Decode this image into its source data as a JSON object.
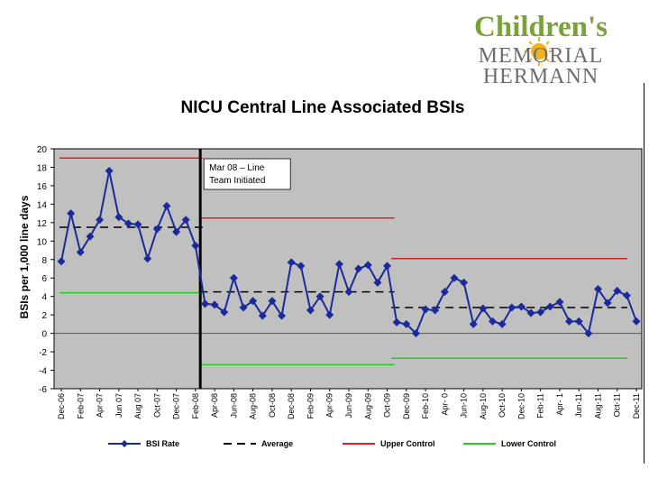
{
  "logo": {
    "line1": "Children's",
    "line2": "MEMORIAL",
    "line3": "HERMANN",
    "colors": {
      "green": "#7aa23a",
      "gray": "#6d6d6d",
      "sun": "#f2b21b"
    }
  },
  "chart_data": {
    "type": "line",
    "title": "NICU Central Line Associated BSIs",
    "ylabel": "BSIs per 1,000 line days",
    "xlabel": "",
    "ylim": [
      -6,
      20
    ],
    "yticks": [
      -6,
      -4,
      -2,
      0,
      2,
      4,
      6,
      8,
      10,
      12,
      14,
      16,
      18,
      20
    ],
    "xtick_labels": [
      "Dec-06",
      "Feb-07",
      "Apr-07",
      "Jun 07",
      "Aug 07",
      "Oct-07",
      "Dec-07",
      "Feb-08",
      "Apr-08",
      "Jun-08",
      "Aug-08",
      "Oct-08",
      "Dec-08",
      "Feb-09",
      "Apr-09",
      "Jun-09",
      "Aug-09",
      "Oct-09",
      "Dec-09",
      "Feb-10",
      "Apr- 0",
      "Jun-10",
      "Aug-10",
      "Oct-10",
      "Dec-10",
      "Feb-11",
      "Apr- 1",
      "Jun-11",
      "Aug-11",
      "Oct-11",
      "Dec-11"
    ],
    "series": [
      {
        "name": "BSI Rate",
        "color": "#1a2a9c",
        "values": [
          7.8,
          13,
          8.8,
          10.5,
          12.3,
          17.6,
          12.6,
          11.9,
          11.8,
          8.1,
          11.3,
          13.8,
          11,
          12.3,
          9.5,
          3.2,
          3.1,
          2.3,
          6,
          2.8,
          3.5,
          1.9,
          3.5,
          1.9,
          7.7,
          7.3,
          2.5,
          4,
          2,
          7.5,
          4.5,
          7,
          7.4,
          5.5,
          7.3,
          1.2,
          1,
          0,
          2.6,
          2.5,
          4.5,
          6,
          5.5,
          1,
          2.7,
          1.3,
          1,
          2.8,
          2.9,
          2.2,
          2.3,
          2.9,
          3.4,
          1.3,
          1.3,
          0,
          4.8,
          3.3,
          4.6,
          4.1,
          1.3
        ]
      }
    ],
    "reference_lines": [
      {
        "name": "Average",
        "color": "#000000",
        "dash": true,
        "segments": [
          {
            "from": 0,
            "to": 14,
            "value": 11.5
          },
          {
            "from": 15,
            "to": 34,
            "value": 4.5
          },
          {
            "from": 35,
            "to": 60,
            "value": 2.8
          }
        ]
      },
      {
        "name": "Upper Control",
        "color": "#e02020",
        "dash": false,
        "segments": [
          {
            "from": 0,
            "to": 14,
            "value": 19
          },
          {
            "from": 15,
            "to": 34,
            "value": 12.5
          },
          {
            "from": 35,
            "to": 60,
            "value": 8.1
          }
        ]
      },
      {
        "name": "Lower Control",
        "color": "#22cc22",
        "dash": false,
        "segments": [
          {
            "from": 0,
            "to": 14,
            "value": 4.4
          },
          {
            "from": 15,
            "to": 34,
            "value": -3.4
          },
          {
            "from": 35,
            "to": 60,
            "value": -2.7
          }
        ]
      }
    ],
    "intervention_index": 14.5,
    "annotation": {
      "line1": "Mar 08 – Line",
      "line2": "Team Initiated"
    },
    "legend": [
      "BSI Rate",
      "Average",
      "Upper Control",
      "Lower Control"
    ],
    "colors": {
      "plot_bg": "#c0c0c0"
    }
  }
}
